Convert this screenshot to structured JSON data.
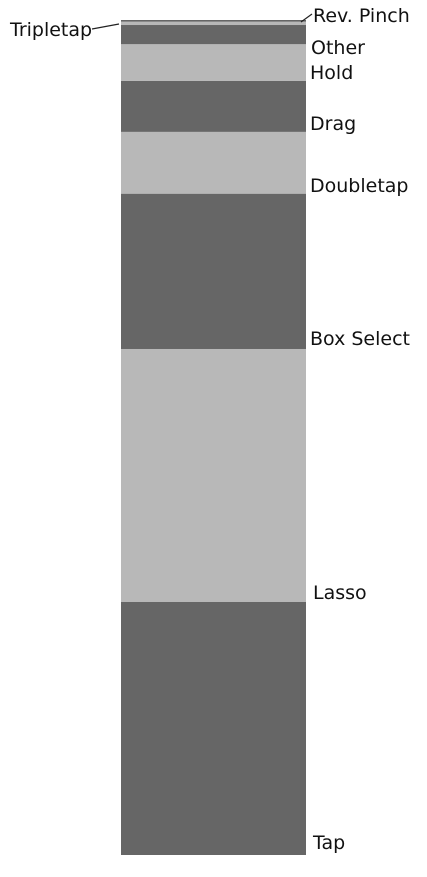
{
  "chart_data": {
    "type": "bar",
    "subtype": "stacked-100-percent",
    "title": "",
    "xlabel": "",
    "ylabel": "",
    "unit": "percent",
    "categories": [
      "Tap",
      "Lasso",
      "Box Select",
      "Doubletap",
      "Drag",
      "Hold",
      "Other",
      "Tripletap",
      "Rev. Pinch"
    ],
    "values": [
      30.3,
      30.3,
      18.6,
      7.4,
      6.1,
      4.4,
      2.3,
      0.4,
      0.2
    ],
    "colors": [
      "#666666",
      "#b8b8b8",
      "#666666",
      "#b8b8b8",
      "#666666",
      "#b8b8b8",
      "#666666",
      "#b8b8b8",
      "#666666"
    ],
    "legend": "none",
    "grid": false
  }
}
